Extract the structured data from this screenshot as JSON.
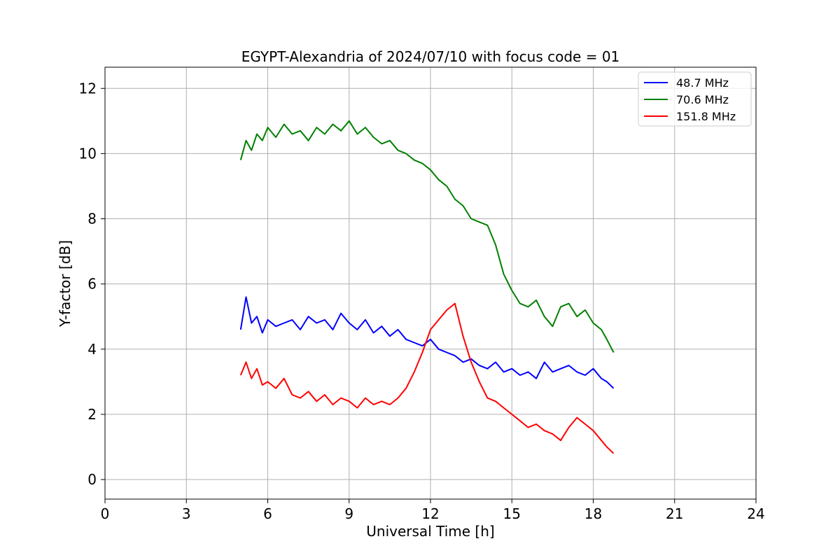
{
  "chart_data": {
    "type": "line",
    "title": "EGYPT-Alexandria of 2024/07/10 with focus code = 01",
    "xlabel": "Universal Time [h]",
    "ylabel": "Y-factor [dB]",
    "xlim": [
      0,
      24
    ],
    "ylim": [
      -0.6,
      12.65
    ],
    "xticks": [
      0,
      3,
      6,
      9,
      12,
      15,
      18,
      21,
      24
    ],
    "yticks": [
      0,
      2,
      4,
      6,
      8,
      10,
      12
    ],
    "grid": true,
    "legend_position": "top-right",
    "series": [
      {
        "name": " 48.7 MHz",
        "color": "#0000ff",
        "x": [
          5.0,
          5.2,
          5.4,
          5.6,
          5.8,
          6.0,
          6.3,
          6.6,
          6.9,
          7.2,
          7.5,
          7.8,
          8.1,
          8.4,
          8.7,
          9.0,
          9.3,
          9.6,
          9.9,
          10.2,
          10.5,
          10.8,
          11.1,
          11.4,
          11.7,
          12.0,
          12.3,
          12.6,
          12.9,
          13.2,
          13.5,
          13.8,
          14.1,
          14.4,
          14.7,
          15.0,
          15.3,
          15.6,
          15.9,
          16.2,
          16.5,
          16.8,
          17.1,
          17.4,
          17.7,
          18.0,
          18.3,
          18.5,
          18.75
        ],
        "y": [
          4.6,
          5.6,
          4.8,
          5.0,
          4.5,
          4.9,
          4.7,
          4.8,
          4.9,
          4.6,
          5.0,
          4.8,
          4.9,
          4.6,
          5.1,
          4.8,
          4.6,
          4.9,
          4.5,
          4.7,
          4.4,
          4.6,
          4.3,
          4.2,
          4.1,
          4.3,
          4.0,
          3.9,
          3.8,
          3.6,
          3.7,
          3.5,
          3.4,
          3.6,
          3.3,
          3.4,
          3.2,
          3.3,
          3.1,
          3.6,
          3.3,
          3.4,
          3.5,
          3.3,
          3.2,
          3.4,
          3.1,
          3.0,
          2.8
        ]
      },
      {
        "name": " 70.6 MHz",
        "color": "#008000",
        "x": [
          5.0,
          5.2,
          5.4,
          5.6,
          5.8,
          6.0,
          6.3,
          6.6,
          6.9,
          7.2,
          7.5,
          7.8,
          8.1,
          8.4,
          8.7,
          9.0,
          9.3,
          9.6,
          9.9,
          10.2,
          10.5,
          10.8,
          11.1,
          11.4,
          11.7,
          12.0,
          12.3,
          12.6,
          12.9,
          13.2,
          13.5,
          13.8,
          14.1,
          14.4,
          14.7,
          15.0,
          15.3,
          15.6,
          15.9,
          16.2,
          16.5,
          16.8,
          17.1,
          17.4,
          17.7,
          18.0,
          18.3,
          18.5,
          18.75
        ],
        "y": [
          9.8,
          10.4,
          10.1,
          10.6,
          10.4,
          10.8,
          10.5,
          10.9,
          10.6,
          10.7,
          10.4,
          10.8,
          10.6,
          10.9,
          10.7,
          11.0,
          10.6,
          10.8,
          10.5,
          10.3,
          10.4,
          10.1,
          10.0,
          9.8,
          9.7,
          9.5,
          9.2,
          9.0,
          8.6,
          8.4,
          8.0,
          7.9,
          7.8,
          7.2,
          6.3,
          5.8,
          5.4,
          5.3,
          5.5,
          5.0,
          4.7,
          5.3,
          5.4,
          5.0,
          5.2,
          4.8,
          4.6,
          4.3,
          3.9
        ]
      },
      {
        "name": " 151.8 MHz",
        "color": "#ff0000",
        "x": [
          5.0,
          5.2,
          5.4,
          5.6,
          5.8,
          6.0,
          6.3,
          6.6,
          6.9,
          7.2,
          7.5,
          7.8,
          8.1,
          8.4,
          8.7,
          9.0,
          9.3,
          9.6,
          9.9,
          10.2,
          10.5,
          10.8,
          11.1,
          11.4,
          11.7,
          12.0,
          12.3,
          12.6,
          12.9,
          13.2,
          13.5,
          13.8,
          14.1,
          14.4,
          14.7,
          15.0,
          15.3,
          15.6,
          15.9,
          16.2,
          16.5,
          16.8,
          17.1,
          17.4,
          17.7,
          18.0,
          18.3,
          18.5,
          18.75
        ],
        "y": [
          3.2,
          3.6,
          3.1,
          3.4,
          2.9,
          3.0,
          2.8,
          3.1,
          2.6,
          2.5,
          2.7,
          2.4,
          2.6,
          2.3,
          2.5,
          2.4,
          2.2,
          2.5,
          2.3,
          2.4,
          2.3,
          2.5,
          2.8,
          3.3,
          3.9,
          4.6,
          4.9,
          5.2,
          5.4,
          4.4,
          3.6,
          3.0,
          2.5,
          2.4,
          2.2,
          2.0,
          1.8,
          1.6,
          1.7,
          1.5,
          1.4,
          1.2,
          1.6,
          1.9,
          1.7,
          1.5,
          1.2,
          1.0,
          0.8
        ]
      }
    ]
  }
}
